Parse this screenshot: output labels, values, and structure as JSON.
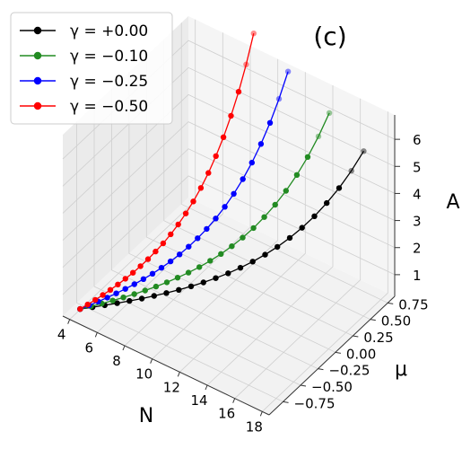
{
  "chart_data": {
    "type": "line",
    "projection": "3d",
    "panel_label": "(c)",
    "xlabel": "N",
    "ylabel": "μ",
    "zlabel": "A",
    "xlim": [
      3.5,
      18.5
    ],
    "ylim": [
      -0.95,
      0.85
    ],
    "zlim": [
      0.2,
      6.9
    ],
    "x_ticks": [
      4,
      6,
      8,
      10,
      12,
      14,
      16,
      18
    ],
    "x_tick_labels": [
      "4",
      "6",
      "8",
      "10",
      "12",
      "14",
      "16",
      "18"
    ],
    "y_ticks": [
      -0.75,
      -0.5,
      -0.25,
      0.0,
      0.25,
      0.5,
      0.75
    ],
    "y_tick_labels": [
      "−0.75",
      "−0.50",
      "−0.25",
      "0.00",
      "0.25",
      "0.50",
      "0.75"
    ],
    "z_ticks": [
      1,
      2,
      3,
      4,
      5,
      6
    ],
    "z_tick_labels": [
      "1",
      "2",
      "3",
      "4",
      "5",
      "6"
    ],
    "grid": true,
    "legend_position": "top-left",
    "series": [
      {
        "name": "γ = +0.00",
        "color": "#000000",
        "x": [
          4,
          16.5
        ],
        "y": [
          -0.8,
          0.8
        ],
        "z": [
          0.22,
          5.2
        ]
      },
      {
        "name": "γ = −0.10",
        "color": "#228B22",
        "x": [
          4,
          14
        ],
        "y": [
          -0.8,
          0.8
        ],
        "z": [
          0.22,
          6.0
        ]
      },
      {
        "name": "γ = −0.25",
        "color": "#0000FF",
        "x": [
          4,
          11
        ],
        "y": [
          -0.8,
          0.8
        ],
        "z": [
          0.22,
          6.8
        ]
      },
      {
        "name": "γ = −0.50",
        "color": "#FF0000",
        "x": [
          4,
          8.5
        ],
        "y": [
          -0.8,
          0.8
        ],
        "z": [
          0.22,
          7.6
        ]
      }
    ]
  }
}
